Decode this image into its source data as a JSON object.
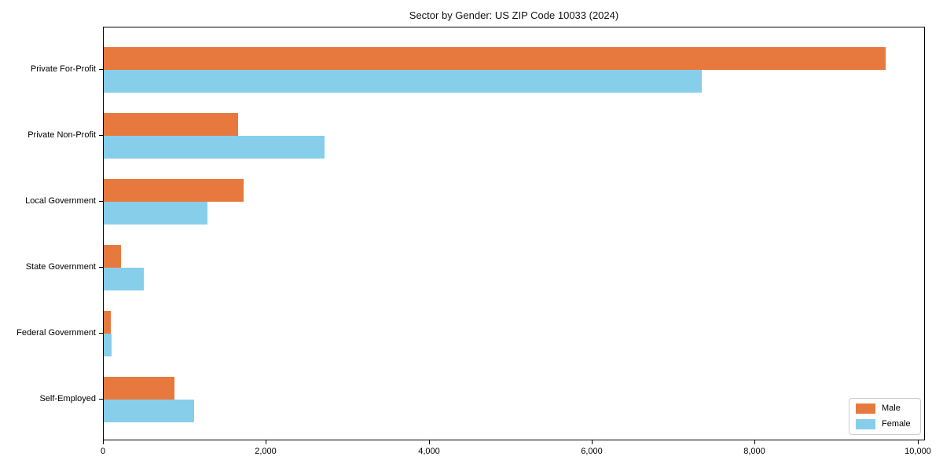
{
  "chart_data": {
    "type": "bar",
    "orientation": "horizontal",
    "title": "Sector by Gender: US ZIP Code 10033 (2024)",
    "xlabel": "",
    "ylabel": "",
    "categories": [
      "Private For-Profit",
      "Private Non-Profit",
      "Local Government",
      "State Government",
      "Federal Government",
      "Self-Employed"
    ],
    "series": [
      {
        "name": "Male",
        "color": "#e8793e",
        "values": [
          9600,
          1650,
          1720,
          210,
          85,
          870
        ]
      },
      {
        "name": "Female",
        "color": "#87ceeb",
        "values": [
          7340,
          2710,
          1270,
          490,
          95,
          1110
        ]
      }
    ],
    "xlim": [
      0,
      10090
    ],
    "xticks": [
      0,
      2000,
      4000,
      6000,
      8000,
      10000
    ],
    "xtick_labels": [
      "0",
      "2,000",
      "4,000",
      "6,000",
      "8,000",
      "10,000"
    ],
    "grid": false,
    "legend_position": "lower right",
    "colors": {
      "spine": "#000000",
      "legend_border": "#cccccc",
      "background": "#ffffff"
    }
  }
}
